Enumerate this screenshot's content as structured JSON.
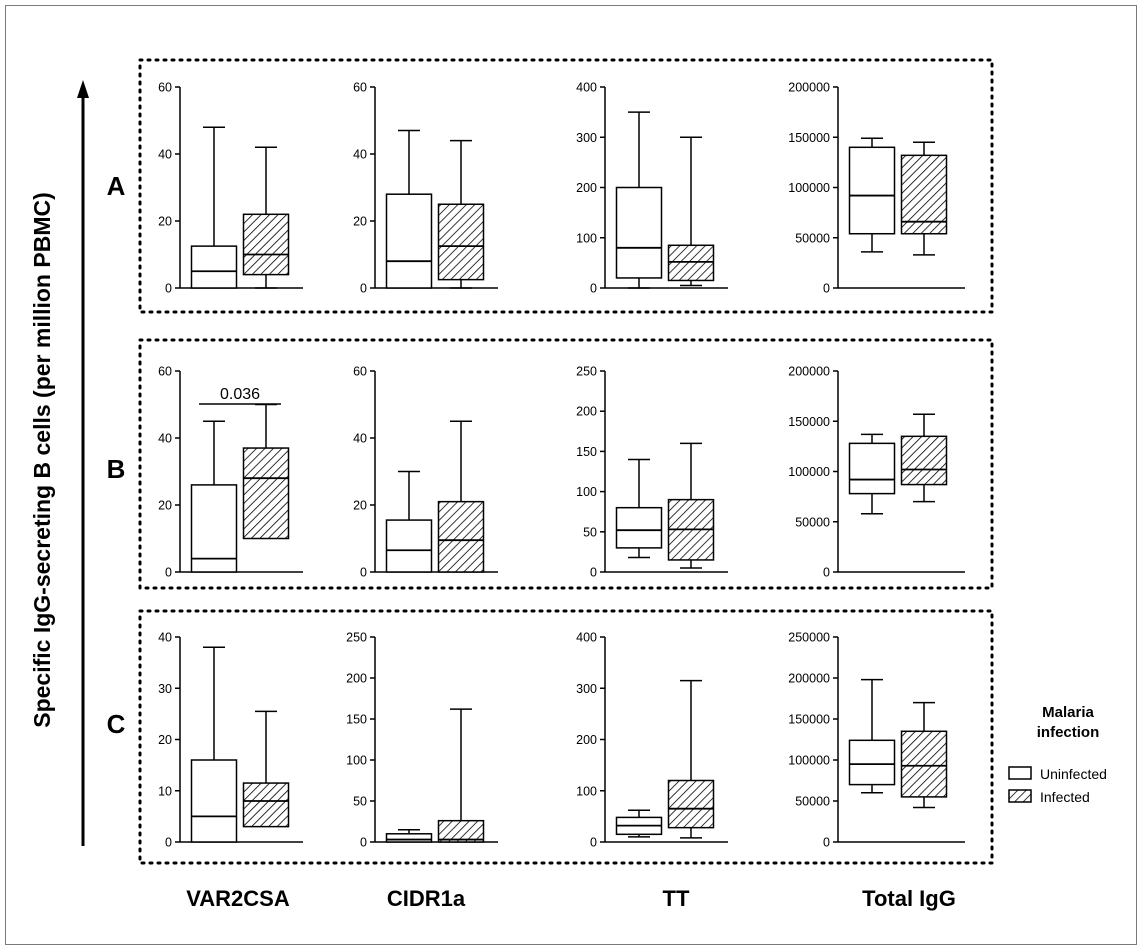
{
  "figure": {
    "y_axis_label": "Specific IgG-secreting B cells (per million PBMC)",
    "column_labels": [
      "VAR2CSA",
      "CIDR1a",
      "TT",
      "Total IgG"
    ],
    "row_labels": [
      "A",
      "B",
      "C"
    ],
    "legend": {
      "title_line1": "Malaria",
      "title_line2": "infection",
      "entries": [
        {
          "name": "Uninfected",
          "fill": "white"
        },
        {
          "name": "Infected",
          "fill": "hatched"
        }
      ]
    },
    "colors": {
      "box_stroke": "#000000",
      "frame": "#7a7a7a",
      "background": "#ffffff"
    }
  },
  "chart_data": [
    {
      "type": "box",
      "panel": "A",
      "antigen": "VAR2CSA",
      "ylim": [
        0,
        60
      ],
      "yticks": [
        0,
        20,
        40,
        60
      ],
      "ytick_labels": [
        "0",
        "20",
        "40",
        "60"
      ],
      "series": [
        {
          "name": "Uninfected",
          "min": 0,
          "q1": 0,
          "median": 5,
          "q3": 12.5,
          "max": 48
        },
        {
          "name": "Infected",
          "min": 0,
          "q1": 4,
          "median": 10,
          "q3": 22,
          "max": 42
        }
      ]
    },
    {
      "type": "box",
      "panel": "A",
      "antigen": "CIDR1a",
      "ylim": [
        0,
        60
      ],
      "yticks": [
        0,
        20,
        40,
        60
      ],
      "ytick_labels": [
        "0",
        "20",
        "40",
        "60"
      ],
      "series": [
        {
          "name": "Uninfected",
          "min": 0,
          "q1": 0,
          "median": 8,
          "q3": 28,
          "max": 47
        },
        {
          "name": "Infected",
          "min": 0,
          "q1": 2.5,
          "median": 12.5,
          "q3": 25,
          "max": 44
        }
      ]
    },
    {
      "type": "box",
      "panel": "A",
      "antigen": "TT",
      "ylim": [
        0,
        400
      ],
      "yticks": [
        0,
        100,
        200,
        300,
        400
      ],
      "ytick_labels": [
        "0",
        "100",
        "200",
        "300",
        "400"
      ],
      "series": [
        {
          "name": "Uninfected",
          "min": 0,
          "q1": 20,
          "median": 80,
          "q3": 200,
          "max": 350
        },
        {
          "name": "Infected",
          "min": 5,
          "q1": 15,
          "median": 52,
          "q3": 85,
          "max": 300
        }
      ]
    },
    {
      "type": "box",
      "panel": "A",
      "antigen": "Total IgG",
      "ylim": [
        0,
        200000
      ],
      "yticks": [
        0,
        50000,
        100000,
        150000,
        200000
      ],
      "ytick_labels": [
        "0",
        "50000",
        "100000",
        "150000",
        "200000"
      ],
      "series": [
        {
          "name": "Uninfected",
          "min": 36000,
          "q1": 54000,
          "median": 92000,
          "q3": 140000,
          "max": 149000
        },
        {
          "name": "Infected",
          "min": 33000,
          "q1": 54000,
          "median": 66000,
          "q3": 132000,
          "max": 145000
        }
      ]
    },
    {
      "type": "box",
      "panel": "B",
      "antigen": "VAR2CSA",
      "ylim": [
        0,
        60
      ],
      "yticks": [
        0,
        20,
        40,
        60
      ],
      "ytick_labels": [
        "0",
        "20",
        "40",
        "60"
      ],
      "annotation": {
        "text": "0.036"
      },
      "series": [
        {
          "name": "Uninfected",
          "min": 0,
          "q1": 0,
          "median": 4,
          "q3": 26,
          "max": 45
        },
        {
          "name": "Infected",
          "min": 10,
          "q1": 10,
          "median": 28,
          "q3": 37,
          "max": 50
        }
      ]
    },
    {
      "type": "box",
      "panel": "B",
      "antigen": "CIDR1a",
      "ylim": [
        0,
        60
      ],
      "yticks": [
        0,
        20,
        40,
        60
      ],
      "ytick_labels": [
        "0",
        "20",
        "40",
        "60"
      ],
      "series": [
        {
          "name": "Uninfected",
          "min": 0,
          "q1": 0,
          "median": 6.5,
          "q3": 15.5,
          "max": 30
        },
        {
          "name": "Infected",
          "min": 0,
          "q1": 0,
          "median": 9.5,
          "q3": 21,
          "max": 45
        }
      ]
    },
    {
      "type": "box",
      "panel": "B",
      "antigen": "TT",
      "ylim": [
        0,
        250
      ],
      "yticks": [
        0,
        50,
        100,
        150,
        200,
        250
      ],
      "ytick_labels": [
        "0",
        "50",
        "100",
        "150",
        "200",
        "250"
      ],
      "series": [
        {
          "name": "Uninfected",
          "min": 18,
          "q1": 30,
          "median": 52,
          "q3": 80,
          "max": 140
        },
        {
          "name": "Infected",
          "min": 5,
          "q1": 15,
          "median": 53,
          "q3": 90,
          "max": 160
        }
      ]
    },
    {
      "type": "box",
      "panel": "B",
      "antigen": "Total IgG",
      "ylim": [
        0,
        200000
      ],
      "yticks": [
        0,
        50000,
        100000,
        150000,
        200000
      ],
      "ytick_labels": [
        "0",
        "50000",
        "100000",
        "150000",
        "200000"
      ],
      "series": [
        {
          "name": "Uninfected",
          "min": 58000,
          "q1": 78000,
          "median": 92000,
          "q3": 128000,
          "max": 137000
        },
        {
          "name": "Infected",
          "min": 70000,
          "q1": 87000,
          "median": 102000,
          "q3": 135000,
          "max": 157000
        }
      ]
    },
    {
      "type": "box",
      "panel": "C",
      "antigen": "VAR2CSA",
      "ylim": [
        0,
        40
      ],
      "yticks": [
        0,
        10,
        20,
        30,
        40
      ],
      "ytick_labels": [
        "0",
        "10",
        "20",
        "30",
        "40"
      ],
      "series": [
        {
          "name": "Uninfected",
          "min": 0,
          "q1": 0,
          "median": 5,
          "q3": 16,
          "max": 38
        },
        {
          "name": "Infected",
          "min": 3,
          "q1": 3,
          "median": 8,
          "q3": 11.5,
          "max": 25.5
        }
      ]
    },
    {
      "type": "box",
      "panel": "C",
      "antigen": "CIDR1a",
      "ylim": [
        0,
        250
      ],
      "yticks": [
        0,
        50,
        100,
        150,
        200,
        250
      ],
      "ytick_labels": [
        "0",
        "50",
        "100",
        "150",
        "200",
        "250"
      ],
      "series": [
        {
          "name": "Uninfected",
          "min": 0,
          "q1": 0,
          "median": 3,
          "q3": 10,
          "max": 15
        },
        {
          "name": "Infected",
          "min": 0,
          "q1": 0,
          "median": 3,
          "q3": 26,
          "max": 162
        }
      ]
    },
    {
      "type": "box",
      "panel": "C",
      "antigen": "TT",
      "ylim": [
        0,
        400
      ],
      "yticks": [
        0,
        100,
        200,
        300,
        400
      ],
      "ytick_labels": [
        "0",
        "100",
        "200",
        "300",
        "400"
      ],
      "series": [
        {
          "name": "Uninfected",
          "min": 10,
          "q1": 15,
          "median": 32,
          "q3": 48,
          "max": 62
        },
        {
          "name": "Infected",
          "min": 8,
          "q1": 28,
          "median": 65,
          "q3": 120,
          "max": 315
        }
      ]
    },
    {
      "type": "box",
      "panel": "C",
      "antigen": "Total IgG",
      "ylim": [
        0,
        250000
      ],
      "yticks": [
        0,
        50000,
        100000,
        150000,
        200000,
        250000
      ],
      "ytick_labels": [
        "0",
        "50000",
        "100000",
        "150000",
        "200000",
        "250000"
      ],
      "series": [
        {
          "name": "Uninfected",
          "min": 60000,
          "q1": 70000,
          "median": 95000,
          "q3": 124000,
          "max": 198000
        },
        {
          "name": "Infected",
          "min": 42000,
          "q1": 55000,
          "median": 93000,
          "q3": 135000,
          "max": 170000
        }
      ]
    }
  ]
}
